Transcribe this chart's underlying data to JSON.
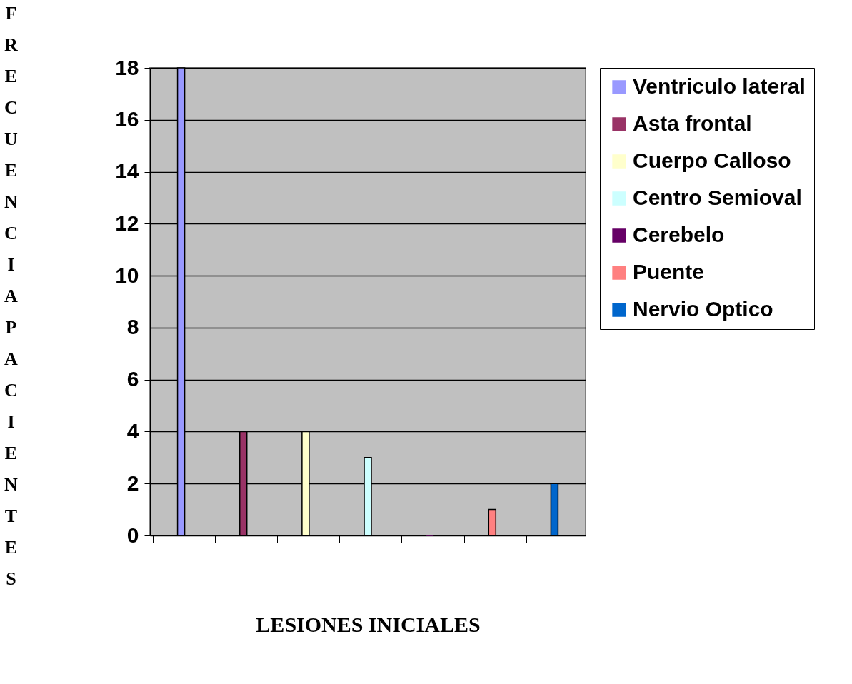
{
  "chart_data": {
    "type": "bar",
    "xlabel": "LESIONES INICIALES",
    "ylabel": "FRECUENCIA PACIENTES",
    "categories": [
      null,
      null,
      null,
      null,
      null,
      null,
      null
    ],
    "series": [
      {
        "name": "Ventriculo lateral",
        "color": "#9999ff",
        "values": [
          18,
          null,
          null,
          null,
          null,
          null,
          null
        ]
      },
      {
        "name": "Asta frontal",
        "color": "#993366",
        "values": [
          null,
          4,
          null,
          null,
          null,
          null,
          null
        ]
      },
      {
        "name": "Cuerpo Calloso",
        "color": "#ffffcc",
        "values": [
          null,
          null,
          4,
          null,
          null,
          null,
          null
        ]
      },
      {
        "name": "Centro Semioval",
        "color": "#ccffff",
        "values": [
          null,
          null,
          null,
          3,
          null,
          null,
          null
        ]
      },
      {
        "name": "Cerebelo",
        "color": "#660066",
        "values": [
          null,
          null,
          null,
          null,
          0,
          null,
          null
        ]
      },
      {
        "name": "Puente",
        "color": "#ff8080",
        "values": [
          null,
          null,
          null,
          null,
          null,
          1,
          null
        ]
      },
      {
        "name": "Nervio Optico",
        "color": "#0066cc",
        "values": [
          null,
          null,
          null,
          null,
          null,
          null,
          2
        ]
      }
    ],
    "ylim": [
      0,
      18
    ],
    "yticks": [
      0,
      2,
      4,
      6,
      8,
      10,
      12,
      14,
      16,
      18
    ],
    "grid": "y",
    "legend": "right",
    "tick_labels": "y"
  }
}
